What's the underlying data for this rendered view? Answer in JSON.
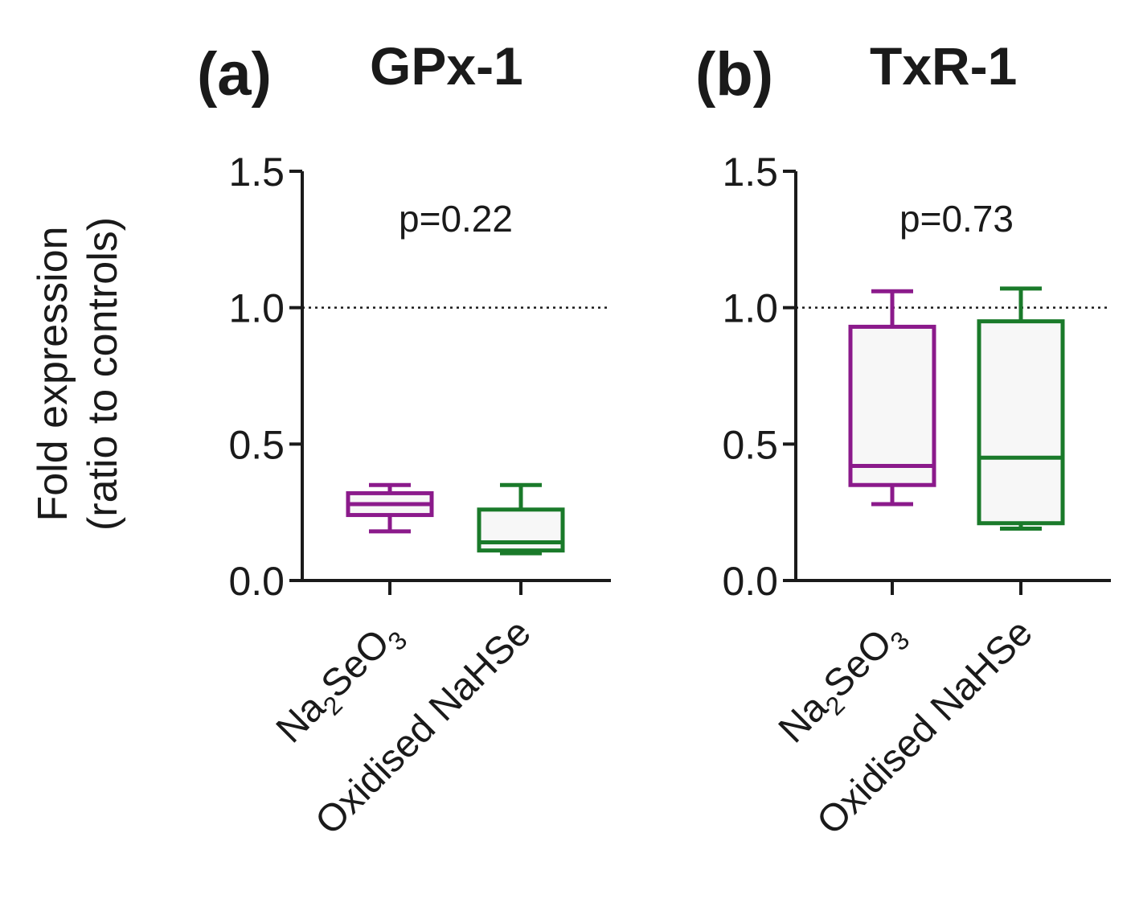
{
  "figure": {
    "y_axis_label_line1": "Fold expression",
    "y_axis_label_line2": "(ratio to controls)"
  },
  "colors": {
    "Na2SeO3": "#8b1a8b",
    "Oxidised NaHSe": "#1a7a2a",
    "axis": "#1a1a1a",
    "box_fill": "#f7f7f7"
  },
  "chart_data": [
    {
      "type": "boxplot",
      "panel": "(a)",
      "title": "GPx-1",
      "annotation": "p=0.22",
      "ylim": [
        0,
        1.5
      ],
      "yticks": [
        0.0,
        0.5,
        1.0,
        1.5
      ],
      "ytick_labels": [
        "0.0",
        "0.5",
        "1.0",
        "1.5"
      ],
      "reference_line": 1.0,
      "categories": [
        {
          "label_main": "Na",
          "label_sub": "2",
          "label_rest": "SeO",
          "label_sub2": "3",
          "label": "Na2SeO3",
          "color_key": "Na2SeO3",
          "min": 0.18,
          "q1": 0.24,
          "median": 0.28,
          "q3": 0.32,
          "max": 0.35
        },
        {
          "label": "Oxidised NaHSe",
          "color_key": "Oxidised NaHSe",
          "min": 0.1,
          "q1": 0.11,
          "median": 0.14,
          "q3": 0.26,
          "max": 0.35
        }
      ]
    },
    {
      "type": "boxplot",
      "panel": "(b)",
      "title": "TxR-1",
      "annotation": "p=0.73",
      "ylim": [
        0,
        1.5
      ],
      "yticks": [
        0.0,
        0.5,
        1.0,
        1.5
      ],
      "ytick_labels": [
        "0.0",
        "0.5",
        "1.0",
        "1.5"
      ],
      "reference_line": 1.0,
      "categories": [
        {
          "label_main": "Na",
          "label_sub": "2",
          "label_rest": "SeO",
          "label_sub2": "3",
          "label": "Na2SeO3",
          "color_key": "Na2SeO3",
          "min": 0.28,
          "q1": 0.35,
          "median": 0.42,
          "q3": 0.93,
          "max": 1.06
        },
        {
          "label": "Oxidised NaHSe",
          "color_key": "Oxidised NaHSe",
          "min": 0.19,
          "q1": 0.21,
          "median": 0.45,
          "q3": 0.95,
          "max": 1.07
        }
      ]
    }
  ]
}
